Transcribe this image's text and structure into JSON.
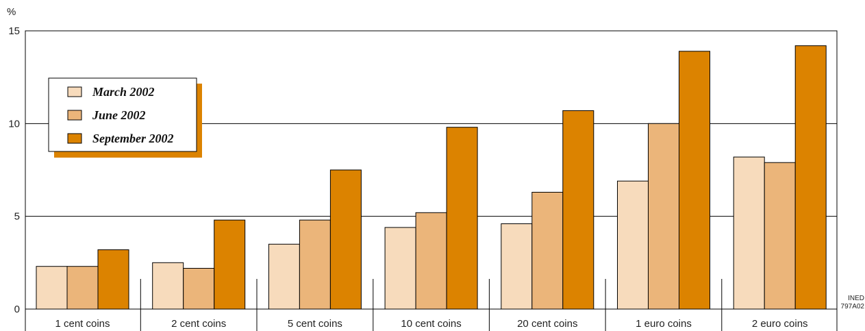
{
  "chart_data": {
    "type": "bar",
    "y_unit": "%",
    "ylim": [
      0,
      15
    ],
    "yticks": [
      0,
      5,
      10,
      15
    ],
    "grid": true,
    "legend_position": "top-left",
    "categories": [
      "1 cent coins",
      "2 cent coins",
      "5 cent coins",
      "10 cent coins",
      "20 cent coins",
      "1 euro coins",
      "2 euro coins"
    ],
    "series": [
      {
        "name": "March 2002",
        "color": "#f7dbbc",
        "values": [
          2.3,
          2.5,
          3.5,
          4.4,
          4.6,
          6.9,
          8.2
        ]
      },
      {
        "name": "June 2002",
        "color": "#ebb57a",
        "values": [
          2.3,
          2.2,
          4.8,
          5.2,
          6.3,
          10.0,
          7.9
        ]
      },
      {
        "name": "September 2002",
        "color": "#dc8300",
        "values": [
          3.2,
          4.8,
          7.5,
          9.8,
          10.7,
          13.9,
          14.2
        ]
      }
    ],
    "credit": [
      "INED",
      "797A02"
    ]
  }
}
